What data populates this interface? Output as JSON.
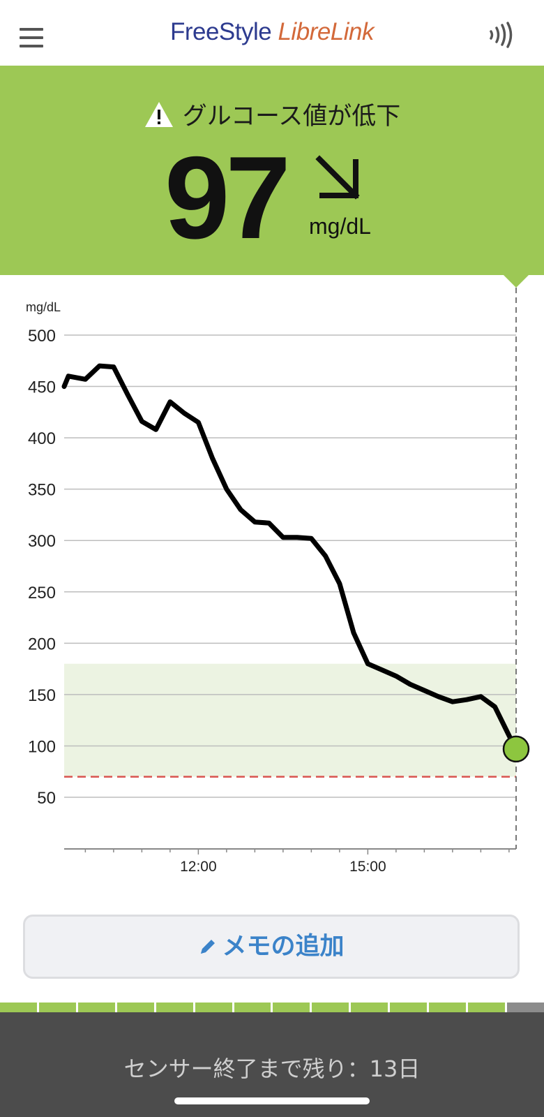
{
  "header": {
    "logo_part1": "FreeStyle ",
    "logo_part2": "LibreLink",
    "menu_icon": "hamburger-menu-icon",
    "scan_icon": "nfc-scan-icon"
  },
  "reading": {
    "alert_text": "グルコース値が低下",
    "alert_icon": "warning-triangle-icon",
    "value": "97",
    "unit": "mg/dL",
    "trend_icon": "arrow-down-right-icon",
    "panel_color": "#9dc855"
  },
  "chart_data": {
    "type": "line",
    "ylabel": "mg/dL",
    "yticks": [
      "500",
      "450",
      "400",
      "350",
      "300",
      "250",
      "200",
      "150",
      "100",
      "50"
    ],
    "ylim": [
      0,
      500
    ],
    "xticks": [
      "12:00",
      "15:00"
    ],
    "x_range_hours": [
      9.625,
      17.625
    ],
    "target_range": [
      70,
      180
    ],
    "low_threshold": 70,
    "series": [
      {
        "x": [
          9.625,
          9.7,
          10.0,
          10.25,
          10.5,
          10.75,
          11.0,
          11.25,
          11.5,
          11.75,
          12.0,
          12.25,
          12.5,
          12.75,
          13.0,
          13.25,
          13.5,
          13.75,
          14.0,
          14.25,
          14.5,
          14.75,
          15.0,
          15.25,
          15.5,
          15.75,
          16.0,
          16.25,
          16.5,
          16.75,
          17.0,
          17.25,
          17.5,
          17.625
        ],
        "y": [
          450,
          460,
          457,
          470,
          469,
          442,
          416,
          408,
          435,
          424,
          415,
          380,
          350,
          330,
          318,
          317,
          303,
          303,
          302,
          285,
          258,
          210,
          180,
          174,
          168,
          160,
          154,
          148,
          143,
          145,
          148,
          138,
          110,
          97
        ]
      }
    ],
    "line_color": "#000000",
    "current_point_color": "#8dc63f",
    "target_band_color": "#ecf3e2",
    "low_line_color": "#d9534f"
  },
  "memo_button": {
    "label": "メモの追加",
    "icon": "pencil-icon"
  },
  "sensor": {
    "text": "センサー終了まで残り：13日",
    "days_remaining": 13,
    "days_total": 14
  }
}
